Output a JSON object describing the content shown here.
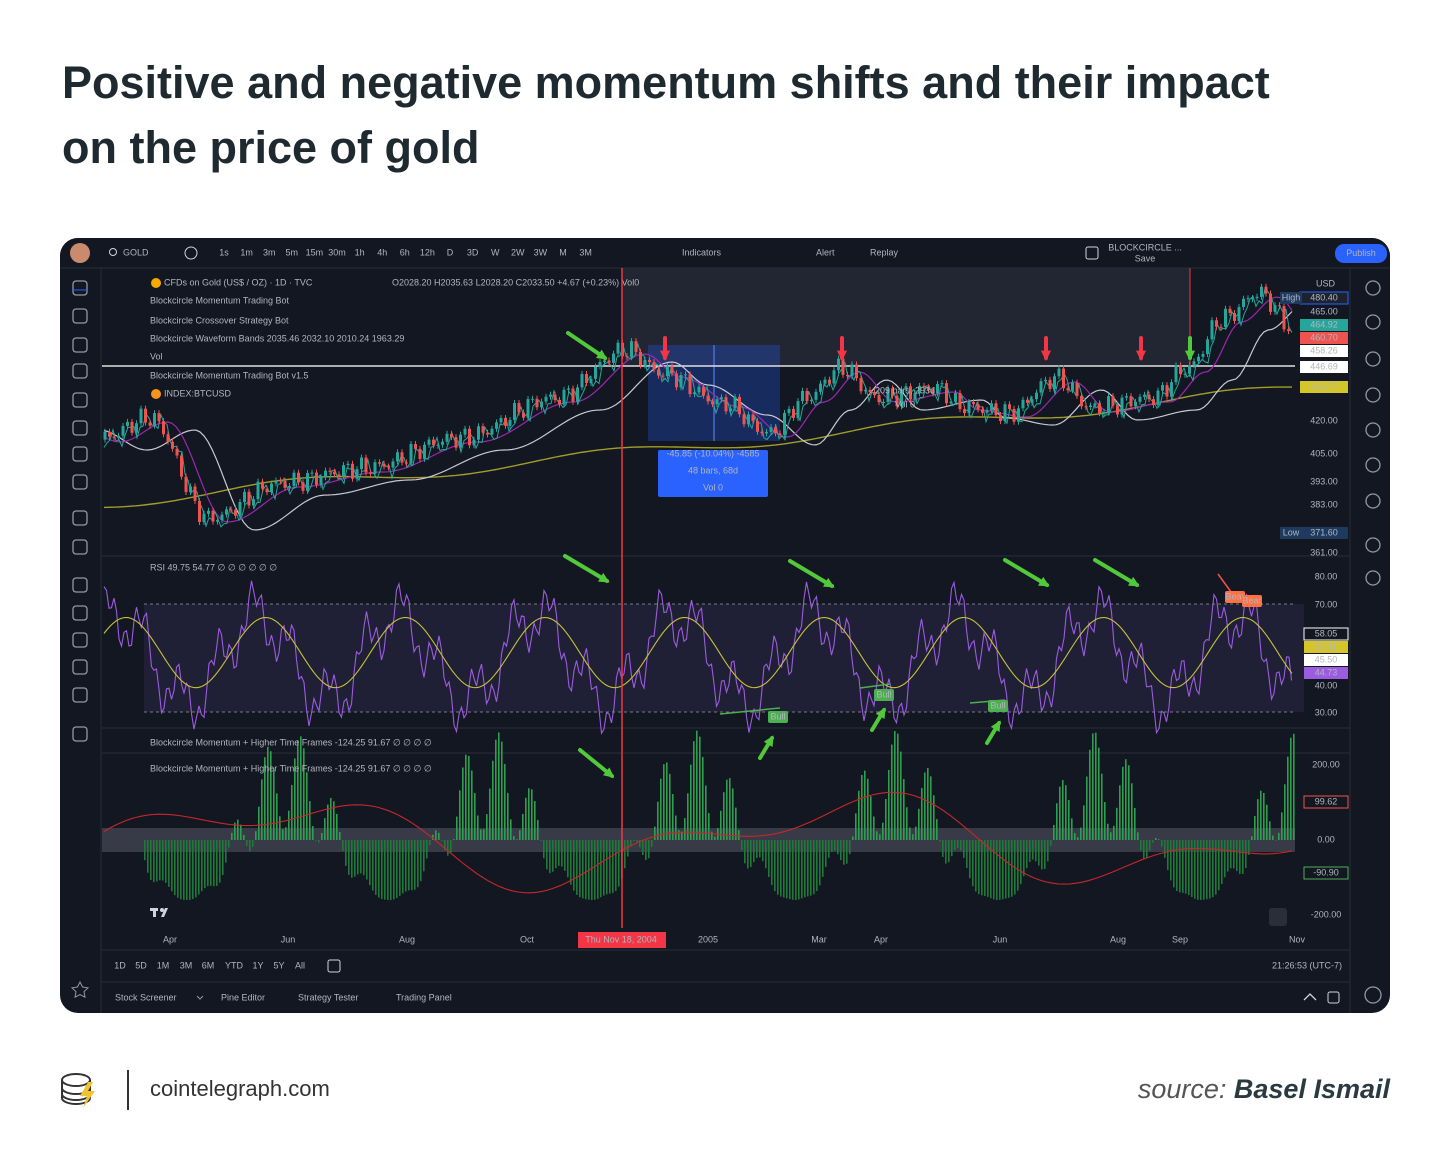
{
  "header": {
    "title": "Positive and negative momentum shifts and their impact on the price of gold"
  },
  "toolbar": {
    "symbol": "GOLD",
    "intervals": [
      "1s",
      "1m",
      "3m",
      "5m",
      "15m",
      "30m",
      "1h",
      "4h",
      "6h",
      "12h",
      "D",
      "3D",
      "W",
      "2W",
      "3W",
      "M",
      "3M"
    ],
    "indicators": "Indicators",
    "alert": "Alert",
    "replay": "Replay",
    "layout": "BLOCKCIRCLE ...",
    "save": "Save",
    "publish": "Publish"
  },
  "main_pane": {
    "legend": [
      "CFDs on Gold (US$ / OZ) · 1D · TVC",
      "Blockcircle Momentum Trading Bot",
      "Blockcircle Crossover Strategy Bot",
      "Blockcircle Waveform Bands 2035.46 2032.10 2010.24 1963.29",
      "Vol",
      "Blockcircle Momentum Trading Bot v1.5",
      "INDEX:BTCUSD"
    ],
    "ohlc": "O2028.20 H2035.63 L2028.20 C2033.50 +4.67 (+0.23%) Vol0",
    "currency": "USD",
    "high": "High",
    "low": "Low",
    "price_labels": [
      "480.40",
      "465.00",
      "464.92",
      "460.70",
      "458.26",
      "446.69",
      "436.77",
      "420.00",
      "405.00",
      "393.00",
      "383.00",
      "371.60",
      "361.00"
    ],
    "measure": [
      "-45.85 (-10.04%) -4585",
      "48 bars, 68d",
      "Vol 0"
    ],
    "range_note": "209 bars, 293d",
    "range_vol": "Vol 0"
  },
  "rsi_pane": {
    "legend": "RSI 49.75 54.77 ∅ ∅ ∅ ∅ ∅ ∅",
    "labels": [
      "80.00",
      "70.00",
      "58.05",
      "52.11",
      "45.50",
      "44.73",
      "40.00",
      "30.00"
    ],
    "bull": [
      "Bull",
      "Bull",
      "Bull"
    ],
    "bear": [
      "Bear",
      "Bear"
    ]
  },
  "momentum_pane": {
    "legend": [
      "Blockcircle Momentum + Higher Time Frames -124.25 91.67 ∅ ∅ ∅ ∅",
      "Blockcircle Momentum + Higher Time Frames -124.25 91.67 ∅ ∅ ∅ ∅"
    ],
    "labels": [
      "200.00",
      "99.62",
      "0.00",
      "-90.90",
      "-200.00"
    ]
  },
  "time_axis": {
    "labels": [
      "Apr",
      "Jun",
      "Aug",
      "Oct",
      "Thu Nov 18, 2004",
      "2005",
      "Mar",
      "Apr",
      "Jun",
      "Aug",
      "Sep",
      "Nov"
    ]
  },
  "ranges": [
    "1D",
    "5D",
    "1M",
    "3M",
    "6M",
    "YTD",
    "1Y",
    "5Y",
    "All"
  ],
  "clock": "21:26:53 (UTC-7)",
  "bottom_tabs": [
    "Stock Screener",
    "Pine Editor",
    "Strategy Tester",
    "Trading Panel"
  ],
  "footer": {
    "site": "cointelegraph.com",
    "source_label": "source:",
    "source_name": "Basel Ismail"
  }
}
